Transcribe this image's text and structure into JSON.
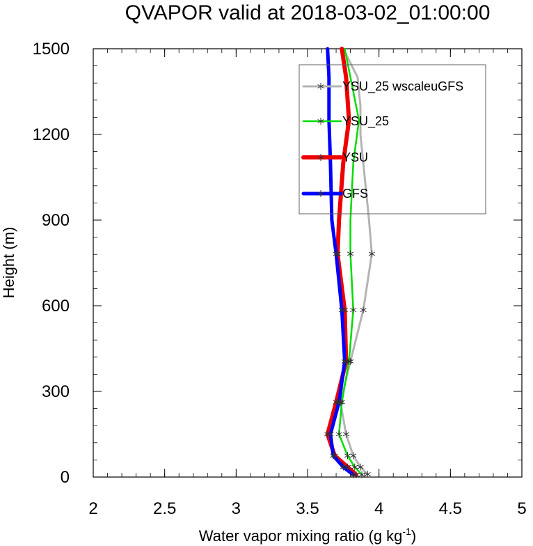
{
  "chart_data": {
    "type": "line",
    "title": "QVAPOR valid at 2018-03-02_01:00:00",
    "xlabel": "Water vapor mixing ratio (g kg",
    "xlabel_sup": "-1",
    "xlabel_end": ")",
    "ylabel": "Height (m)",
    "xlim": [
      2,
      5
    ],
    "ylim": [
      0,
      1500
    ],
    "xticks": [
      "2",
      "2.5",
      "3",
      "3.5",
      "4",
      "4.5",
      "5"
    ],
    "yticks": [
      "0",
      "300",
      "600",
      "900",
      "1200",
      "1500"
    ],
    "grid": false,
    "legend_position": "top-right",
    "series": [
      {
        "name": "YSU_25 wscaleuGFS",
        "color": "#b4b4b4",
        "line_width": 3,
        "marker": "asterisk",
        "x": [
          3.92,
          3.87,
          3.82,
          3.77,
          3.73,
          3.8,
          3.89,
          3.95,
          3.93,
          3.87,
          3.87,
          3.85,
          3.75
        ],
        "y": [
          10,
          35,
          75,
          150,
          262,
          405,
          585,
          782,
          900,
          1200,
          1300,
          1400,
          1500
        ]
      },
      {
        "name": "YSU_25",
        "color": "#00dd00",
        "line_width": 2.5,
        "marker": "asterisk",
        "x": [
          3.88,
          3.83,
          3.78,
          3.72,
          3.74,
          3.79,
          3.82,
          3.8,
          3.8,
          3.82,
          3.86,
          3.8,
          3.76
        ],
        "y": [
          8,
          35,
          75,
          150,
          262,
          405,
          585,
          782,
          900,
          1100,
          1250,
          1400,
          1500
        ]
      },
      {
        "name": "YSU",
        "color": "#ee0000",
        "line_width": 6,
        "marker": "asterisk",
        "x": [
          3.84,
          3.78,
          3.69,
          3.64,
          3.7,
          3.77,
          3.76,
          3.71,
          3.72,
          3.75,
          3.79,
          3.77,
          3.74
        ],
        "y": [
          8,
          35,
          75,
          150,
          262,
          405,
          585,
          782,
          900,
          1100,
          1250,
          1400,
          1500
        ]
      },
      {
        "name": "GFS",
        "color": "#0000ff",
        "line_width": 5,
        "marker": "asterisk",
        "x": [
          3.82,
          3.75,
          3.68,
          3.66,
          3.72,
          3.76,
          3.74,
          3.7,
          3.67,
          3.66,
          3.65,
          3.65,
          3.64
        ],
        "y": [
          8,
          35,
          75,
          150,
          262,
          405,
          585,
          782,
          900,
          1100,
          1250,
          1400,
          1500
        ]
      }
    ]
  }
}
